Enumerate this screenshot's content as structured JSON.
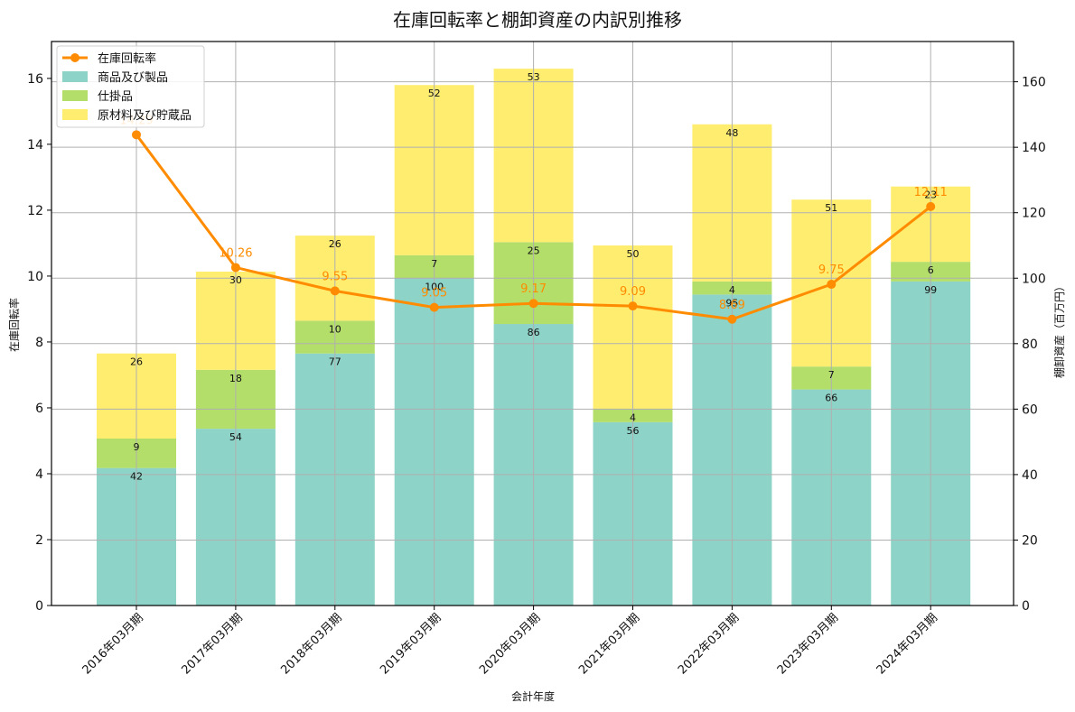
{
  "chart_data": {
    "type": "bar",
    "title": "在庫回転率と棚卸資産の内訳別推移",
    "xlabel": "会計年度",
    "ylabel": "在庫回転率",
    "ylabel_right": "棚卸資産（百万円）",
    "categories": [
      "2016年03月期",
      "2017年03月期",
      "2018年03月期",
      "2019年03月期",
      "2020年03月期",
      "2021年03月期",
      "2022年03月期",
      "2023年03月期",
      "2024年03月期"
    ],
    "series": [
      {
        "name": "商品及び製品",
        "type": "bar",
        "axis": "right",
        "color": "#8dd3c7",
        "values": [
          42,
          54,
          77,
          100,
          86,
          56,
          95,
          66,
          99
        ]
      },
      {
        "name": "仕掛品",
        "type": "bar",
        "axis": "right",
        "color": "#b3de69",
        "values": [
          9,
          18,
          10,
          7,
          25,
          4,
          4,
          7,
          6
        ]
      },
      {
        "name": "原材料及び貯蔵品",
        "type": "bar",
        "axis": "right",
        "color": "#ffed6f",
        "values": [
          26,
          30,
          26,
          52,
          53,
          50,
          48,
          51,
          23
        ]
      },
      {
        "name": "在庫回転率",
        "type": "line",
        "axis": "left",
        "color": "#ff8c00",
        "values": [
          14.29,
          10.26,
          9.55,
          9.05,
          9.17,
          9.09,
          8.69,
          9.75,
          12.11
        ]
      }
    ],
    "stacked": true,
    "ylim_left": [
      0,
      17.12
    ],
    "ylim_right": [
      0,
      172.3
    ],
    "yticks_left": [
      0,
      2,
      4,
      6,
      8,
      10,
      12,
      14,
      16
    ],
    "yticks_right": [
      0,
      20,
      40,
      60,
      80,
      100,
      120,
      140,
      160
    ],
    "grid": true,
    "legend_position": "upper left"
  }
}
